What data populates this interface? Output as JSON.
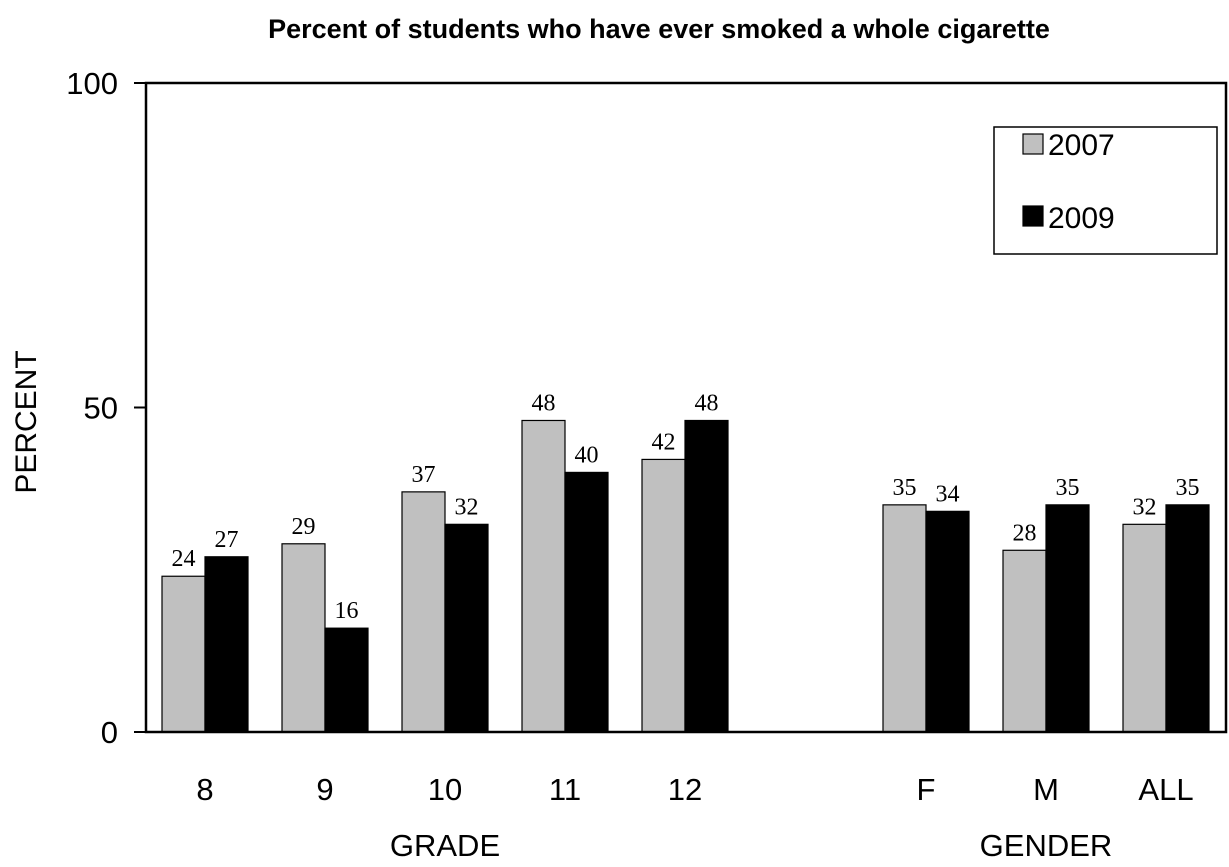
{
  "chart_data": {
    "type": "bar",
    "title": "Percent of students who have ever smoked a whole cigarette",
    "ylabel": "PERCENT",
    "ylim": [
      0,
      100
    ],
    "yticks": [
      "0",
      "50",
      "100"
    ],
    "groups": [
      {
        "label": "GRADE",
        "categories": [
          "8",
          "9",
          "10",
          "11",
          "12"
        ]
      },
      {
        "label": "GENDER",
        "categories": [
          "F",
          "M",
          "ALL"
        ]
      }
    ],
    "categories": [
      "8",
      "9",
      "10",
      "11",
      "12",
      "F",
      "M",
      "ALL"
    ],
    "series": [
      {
        "name": "2007",
        "color": "#c0c0c0",
        "values": [
          24,
          29,
          37,
          48,
          42,
          35,
          28,
          32
        ]
      },
      {
        "name": "2009",
        "color": "#000000",
        "values": [
          27,
          16,
          32,
          40,
          48,
          34,
          35,
          35
        ]
      }
    ],
    "grid": false,
    "legend_position": "top-right"
  }
}
